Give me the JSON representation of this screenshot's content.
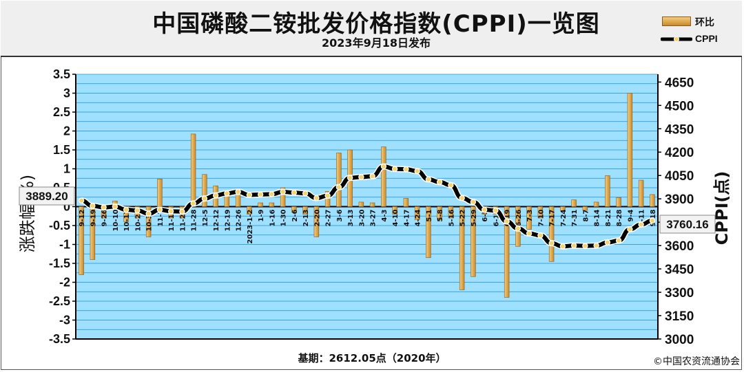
{
  "header": {
    "title": "中国磷酸二铵批发价格指数(CPPI)一览图",
    "subtitle": "2023年9月18日发布"
  },
  "legend": {
    "bar_label": "环比",
    "line_label": "CPPI"
  },
  "footer": {
    "base_text": "基期：2612.05点（2020年）",
    "copyright": "©中国农资流通协会"
  },
  "colors": {
    "plot_bg": "#9fe0ff",
    "grid": "#1a8fd6",
    "bar_top": "#f6cd7c",
    "bar_bottom": "#c88a2c",
    "line": "#000000",
    "marker": "#f5d36b"
  },
  "chart_data": {
    "type": "bar+line",
    "xlabel": "",
    "ylabel_left": "涨跌幅(%)",
    "ylabel_right": "CPPI(点)",
    "ylim_left": [
      -3.5,
      3.5
    ],
    "ylim_right": [
      3000,
      4700
    ],
    "left_ticks": [
      "3.5",
      "3",
      "2.5",
      "2",
      "1.5",
      "1",
      "0.5",
      "0",
      "-0.5",
      "-1",
      "-1.5",
      "-2",
      "-2.5",
      "-3",
      "-3.5"
    ],
    "right_ticks": [
      "4650",
      "4500",
      "4350",
      "4200",
      "4050",
      "3900",
      "3750",
      "3600",
      "3450",
      "3300",
      "3150",
      "3000"
    ],
    "grid": true,
    "legend_position": "top-right",
    "categories": [
      "9-12",
      "9-19",
      "9-26",
      "10-10",
      "10-17",
      "10-24",
      "10-31",
      "11-7",
      "11-14",
      "11-21",
      "11-28",
      "12-5",
      "12-12",
      "12-19",
      "12-26",
      "2023-1-2",
      "1-9",
      "1-16",
      "1-30",
      "2-6",
      "2-13",
      "2-20",
      "2-27",
      "3-6",
      "3-13",
      "3-20",
      "3-27",
      "4-3",
      "4-10",
      "4-17",
      "4-24",
      "5-1",
      "5-8",
      "5-16",
      "5-22",
      "5-29",
      "6-5",
      "6-12",
      "6-19",
      "6-26",
      "7-3",
      "7-10",
      "7-17",
      "7-24",
      "7-31",
      "8-7",
      "8-14",
      "8-21",
      "8-28",
      "9-4",
      "9-11",
      "9-18"
    ],
    "series": [
      {
        "name": "环比",
        "kind": "bar",
        "values": [
          -1.8,
          -1.4,
          -0.3,
          0.15,
          -0.4,
          -0.3,
          -0.8,
          0.73,
          -0.3,
          -0.3,
          1.92,
          0.85,
          0.55,
          0.42,
          0.37,
          -0.2,
          0.1,
          0.1,
          0.5,
          -0.15,
          -0.2,
          -0.8,
          0.4,
          1.42,
          1.5,
          0.12,
          0.1,
          1.58,
          -0.2,
          0.22,
          -0.35,
          -1.35,
          -0.35,
          -0.3,
          -2.2,
          -1.85,
          -0.2,
          -0.2,
          -2.4,
          -1.05,
          -0.6,
          -0.3,
          -1.45,
          -0.12,
          0.18,
          -0.1,
          0.12,
          0.82,
          0.24,
          3.0,
          0.7,
          0.32
        ]
      },
      {
        "name": "CPPI",
        "kind": "line",
        "values": [
          3889.2,
          3855,
          3845,
          3850,
          3830,
          3825,
          3805,
          3830,
          3820,
          3818,
          3870,
          3902,
          3922,
          3935,
          3945,
          3925,
          3928,
          3930,
          3945,
          3940,
          3935,
          3905,
          3920,
          3975,
          4035,
          4040,
          4045,
          4108,
          4092,
          4090,
          4078,
          4025,
          4008,
          3988,
          3905,
          3880,
          3830,
          3825,
          3755,
          3710,
          3678,
          3665,
          3615,
          3595,
          3600,
          3598,
          3600,
          3620,
          3632,
          3705,
          3735,
          3760.16
        ]
      }
    ],
    "annotations": [
      "3889.20",
      "3760.16"
    ]
  }
}
